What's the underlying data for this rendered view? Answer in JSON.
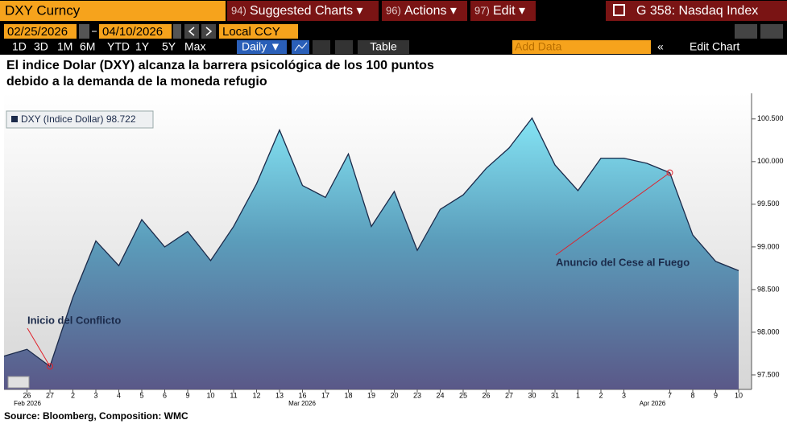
{
  "toolbar": {
    "ticker": "DXY Curncy",
    "menus": [
      {
        "num": "94)",
        "label": "Suggested Charts ▾"
      },
      {
        "num": "96)",
        "label": "Actions ▾"
      },
      {
        "num": "97)",
        "label": "Edit ▾"
      }
    ],
    "related": "G 358: Nasdaq Index",
    "start_date": "02/25/2026",
    "end_date": "04/10/2026",
    "currency": "Local CCY",
    "periods": [
      "1D",
      "3D",
      "1M",
      "6M",
      "YTD",
      "1Y",
      "5Y",
      "Max"
    ],
    "frequency": "Daily ▼",
    "table": "Table",
    "add_data": "Add Data",
    "edit_chart": "Edit Chart"
  },
  "chart_data": {
    "type": "area",
    "title": "El indice Dolar (DXY) alcanza la barrera psicológica de los 100 puntos",
    "subtitle": "debido a la demanda de la moneda refugio",
    "categories": [
      null,
      "26",
      "27",
      "2",
      "3",
      "4",
      "5",
      "6",
      "9",
      "10",
      "11",
      "12",
      "13",
      "16",
      "17",
      "18",
      "19",
      "20",
      "23",
      "24",
      "25",
      "26",
      "27",
      "30",
      "31",
      "1",
      "2",
      "3",
      null,
      "7",
      "8",
      "9",
      "10"
    ],
    "month_labels": [
      "Feb 2026",
      "Mar 2026",
      "Apr 2026"
    ],
    "series": [
      {
        "name": "DXY (Indice Dollar)",
        "color": "#1b2a4a",
        "values": [
          97.72,
          97.8,
          97.6,
          98.41,
          99.07,
          98.78,
          99.32,
          99.0,
          99.18,
          98.84,
          99.24,
          99.74,
          100.37,
          99.72,
          99.58,
          100.09,
          99.24,
          99.65,
          98.96,
          99.44,
          99.61,
          99.92,
          100.16,
          100.51,
          99.96,
          99.66,
          100.04,
          100.04,
          99.98,
          99.87,
          99.14,
          98.83,
          98.722
        ]
      }
    ],
    "ylim": [
      97.33,
      100.8
    ],
    "yticks": [
      {
        "value": 97.5,
        "label": "97.500"
      },
      {
        "value": 98,
        "label": "98.000"
      },
      {
        "value": 98.5,
        "label": "98.500"
      },
      {
        "value": 99,
        "label": "99.000"
      },
      {
        "value": 99.5,
        "label": "99.500"
      },
      {
        "value": 100,
        "label": "100.000"
      },
      {
        "value": 100.5,
        "label": "100.500"
      }
    ],
    "grid": false,
    "annotations": [
      "Inicio del Conflicto",
      "Anuncio del Cese al Fuego"
    ],
    "source": "Source: Bloomberg, Composition: WMC"
  }
}
